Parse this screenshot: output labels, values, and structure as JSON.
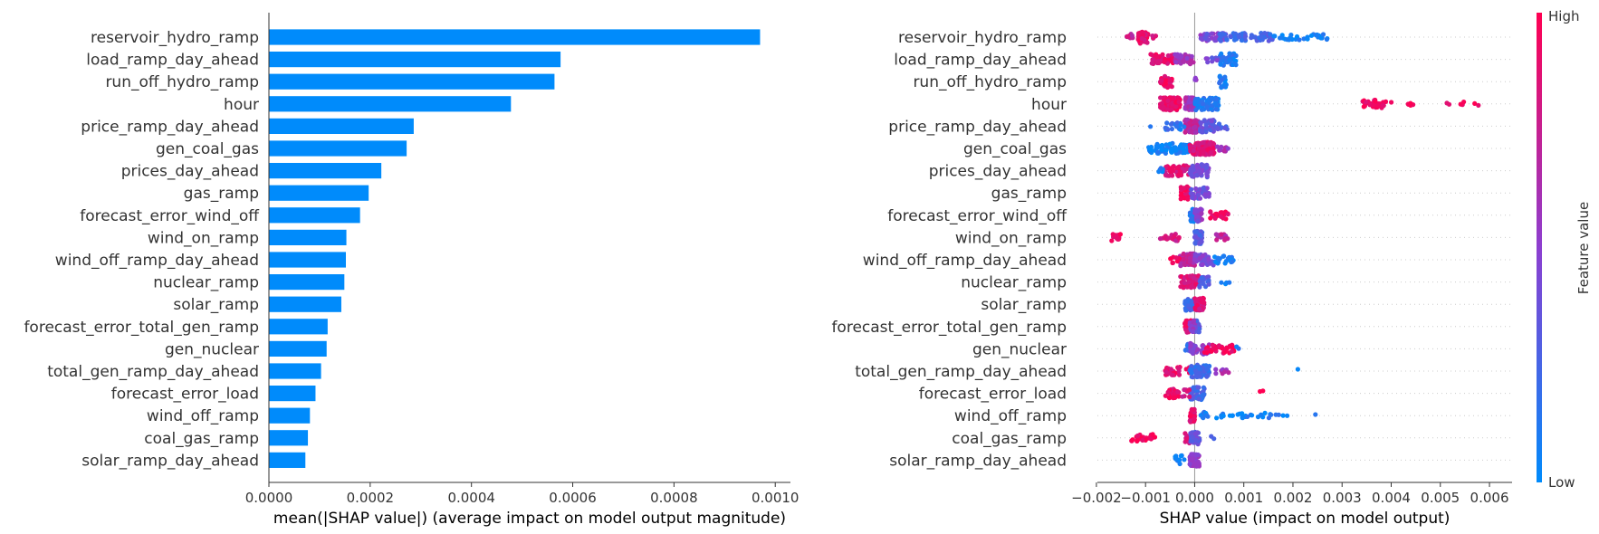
{
  "chart_data": [
    {
      "type": "bar",
      "orientation": "horizontal",
      "categories": [
        "reservoir_hydro_ramp",
        "load_ramp_day_ahead",
        "run_off_hydro_ramp",
        "hour",
        "price_ramp_day_ahead",
        "gen_coal_gas",
        "prices_day_ahead",
        "gas_ramp",
        "forecast_error_wind_off",
        "wind_on_ramp",
        "wind_off_ramp_day_ahead",
        "nuclear_ramp",
        "solar_ramp",
        "forecast_error_total_gen_ramp",
        "gen_nuclear",
        "total_gen_ramp_day_ahead",
        "forecast_error_load",
        "wind_off_ramp",
        "coal_gas_ramp",
        "solar_ramp_day_ahead"
      ],
      "values": [
        0.00097,
        0.000576,
        0.000564,
        0.000478,
        0.000286,
        0.000272,
        0.000222,
        0.000197,
        0.00018,
        0.000153,
        0.000152,
        0.000149,
        0.000143,
        0.000116,
        0.000114,
        0.000103,
        9.2e-05,
        8.1e-05,
        7.7e-05,
        7.2e-05
      ],
      "xlabel": "mean(|SHAP value|) (average impact on model output magnitude)",
      "ylabel": "",
      "xlim": [
        0,
        0.00103
      ],
      "xticks": [
        "0.0000",
        "0.0002",
        "0.0004",
        "0.0006",
        "0.0008",
        "0.0010"
      ],
      "xtick_values": [
        0,
        0.0002,
        0.0004,
        0.0006,
        0.0008,
        0.001
      ],
      "bar_color": "#008bfb",
      "grid": false
    },
    {
      "type": "scatter",
      "subtype": "beeswarm",
      "categories": [
        "reservoir_hydro_ramp",
        "load_ramp_day_ahead",
        "run_off_hydro_ramp",
        "hour",
        "price_ramp_day_ahead",
        "gen_coal_gas",
        "prices_day_ahead",
        "gas_ramp",
        "forecast_error_wind_off",
        "wind_on_ramp",
        "wind_off_ramp_day_ahead",
        "nuclear_ramp",
        "solar_ramp",
        "forecast_error_total_gen_ramp",
        "gen_nuclear",
        "total_gen_ramp_day_ahead",
        "forecast_error_load",
        "wind_off_ramp",
        "coal_gas_ramp",
        "solar_ramp_day_ahead"
      ],
      "xlabel": "SHAP value (impact on model output)",
      "xlim": [
        -0.00198,
        0.00646
      ],
      "xticks": [
        "−0.002",
        "−0.001",
        "0.000",
        "0.001",
        "0.002",
        "0.003",
        "0.004",
        "0.005",
        "0.006"
      ],
      "xtick_values": [
        -0.002,
        -0.001,
        0,
        0.001,
        0.002,
        0.003,
        0.004,
        0.005,
        0.006
      ],
      "colorbar": {
        "label": "Feature value",
        "high": "High",
        "low": "Low",
        "high_color": "#ff0052",
        "low_color": "#008bfb"
      },
      "point_groups": [
        [
          [
            -0.00095,
            -0.00115,
            0.9,
            50
          ],
          [
            -0.0012,
            -0.0007,
            0.85,
            14
          ],
          [
            -0.00145,
            -0.00125,
            0.75,
            8
          ],
          [
            0.0001,
            0.0006,
            0.5,
            30
          ],
          [
            0.0005,
            0.0016,
            0.25,
            70
          ],
          [
            0.0016,
            0.0027,
            0.05,
            30
          ],
          [
            0.0001,
            0.0003,
            0.35,
            10
          ]
        ],
        [
          [
            -0.0009,
            -0.0004,
            0.9,
            45
          ],
          [
            -0.0004,
            0,
            0.6,
            35
          ],
          [
            0.0005,
            0.00085,
            0.1,
            40
          ],
          [
            0.0002,
            0.0005,
            0.4,
            10
          ]
        ],
        [
          [
            -0.0007,
            -0.00045,
            0.9,
            30
          ],
          [
            0.0005,
            0.00065,
            0.1,
            18
          ],
          [
            0,
            5e-05,
            0.5,
            3
          ]
        ],
        [
          [
            -0.0007,
            -0.0003,
            0.9,
            110
          ],
          [
            -0.0002,
            0,
            0.6,
            60
          ],
          [
            0,
            0.0005,
            0.1,
            60
          ],
          [
            0.0034,
            0.0039,
            0.95,
            30
          ],
          [
            0.004,
            0.0045,
            0.95,
            6
          ],
          [
            0.0047,
            0.006,
            0.95,
            7
          ]
        ],
        [
          [
            -0.0002,
            0.0001,
            0.7,
            55
          ],
          [
            0.0001,
            0.0004,
            0.35,
            40
          ],
          [
            -0.0006,
            -0.0002,
            0.15,
            20
          ],
          [
            0.0004,
            0.0007,
            0.3,
            10
          ],
          [
            -0.0009,
            -0.0009,
            0.05,
            1
          ]
        ],
        [
          [
            -0.001,
            -0.0001,
            0.05,
            80
          ],
          [
            -0.0001,
            0.0004,
            0.85,
            120
          ],
          [
            0.0004,
            0.0007,
            0.6,
            10
          ]
        ],
        [
          [
            -0.0006,
            -0.0001,
            0.85,
            50
          ],
          [
            -0.0001,
            0.0003,
            0.4,
            60
          ],
          [
            -0.0008,
            -0.0006,
            0.1,
            5
          ]
        ],
        [
          [
            -0.0003,
            -0.0001,
            0.95,
            30
          ],
          [
            -0.0001,
            0.0003,
            0.4,
            40
          ]
        ],
        [
          [
            -0.0001,
            0,
            0.1,
            20
          ],
          [
            0,
            0.00015,
            0.5,
            30
          ],
          [
            0.0003,
            0.0007,
            0.95,
            25
          ]
        ],
        [
          [
            -0.0017,
            -0.0015,
            0.95,
            14
          ],
          [
            0,
            0.00015,
            0.3,
            40
          ],
          [
            -0.0007,
            -0.0003,
            0.8,
            20
          ],
          [
            0.0004,
            0.0007,
            0.7,
            15
          ]
        ],
        [
          [
            -0.0003,
            0,
            0.7,
            60
          ],
          [
            0,
            0.0004,
            0.45,
            40
          ],
          [
            0.0004,
            0.0008,
            0.1,
            25
          ],
          [
            -0.0005,
            -0.0003,
            0.95,
            8
          ]
        ],
        [
          [
            -0.0003,
            0.0001,
            0.85,
            60
          ],
          [
            0.0001,
            0.0003,
            0.3,
            20
          ],
          [
            0.0005,
            0.0008,
            0.05,
            4
          ]
        ],
        [
          [
            -0.0002,
            5e-05,
            0.2,
            40
          ],
          [
            0,
            0.0002,
            0.85,
            40
          ]
        ],
        [
          [
            -0.0002,
            0,
            0.9,
            40
          ],
          [
            0,
            0.0001,
            0.3,
            30
          ],
          [
            -0.0001,
            0,
            0.5,
            15
          ]
        ],
        [
          [
            -0.0002,
            -0.0001,
            0.2,
            10
          ],
          [
            -0.0001,
            0.0003,
            0.5,
            40
          ],
          [
            0.0002,
            0.0008,
            0.95,
            40
          ],
          [
            0.0008,
            0.0009,
            0.1,
            2
          ]
        ],
        [
          [
            -0.0006,
            -0.0001,
            0.9,
            30
          ],
          [
            -0.0001,
            0.0003,
            0.2,
            60
          ],
          [
            0.0004,
            0.0007,
            0.6,
            8
          ],
          [
            0.0021,
            0.0021,
            0.05,
            1
          ]
        ],
        [
          [
            -0.0006,
            -0.0003,
            0.9,
            25
          ],
          [
            -0.0001,
            0.0002,
            0.25,
            50
          ],
          [
            0.0013,
            0.0014,
            0.95,
            2
          ],
          [
            -0.00025,
            -0.0001,
            0.8,
            8
          ]
        ],
        [
          [
            -0.0001,
            0,
            0.9,
            50
          ],
          [
            0.0001,
            0.0003,
            0.1,
            10
          ],
          [
            0.0004,
            0.0008,
            0.05,
            8
          ],
          [
            0.0008,
            0.0019,
            0.08,
            22
          ],
          [
            0.0024,
            0.0025,
            0.05,
            1
          ]
        ],
        [
          [
            -0.0013,
            -0.0008,
            0.95,
            25
          ],
          [
            -0.0002,
            -0.0001,
            0.8,
            10
          ],
          [
            -0.0001,
            0.0001,
            0.35,
            40
          ],
          [
            0.0003,
            0.0004,
            0.2,
            2
          ]
        ],
        [
          [
            -0.0004,
            -0.0002,
            0.1,
            15
          ],
          [
            -0.0001,
            0.0001,
            0.5,
            60
          ]
        ]
      ]
    }
  ]
}
